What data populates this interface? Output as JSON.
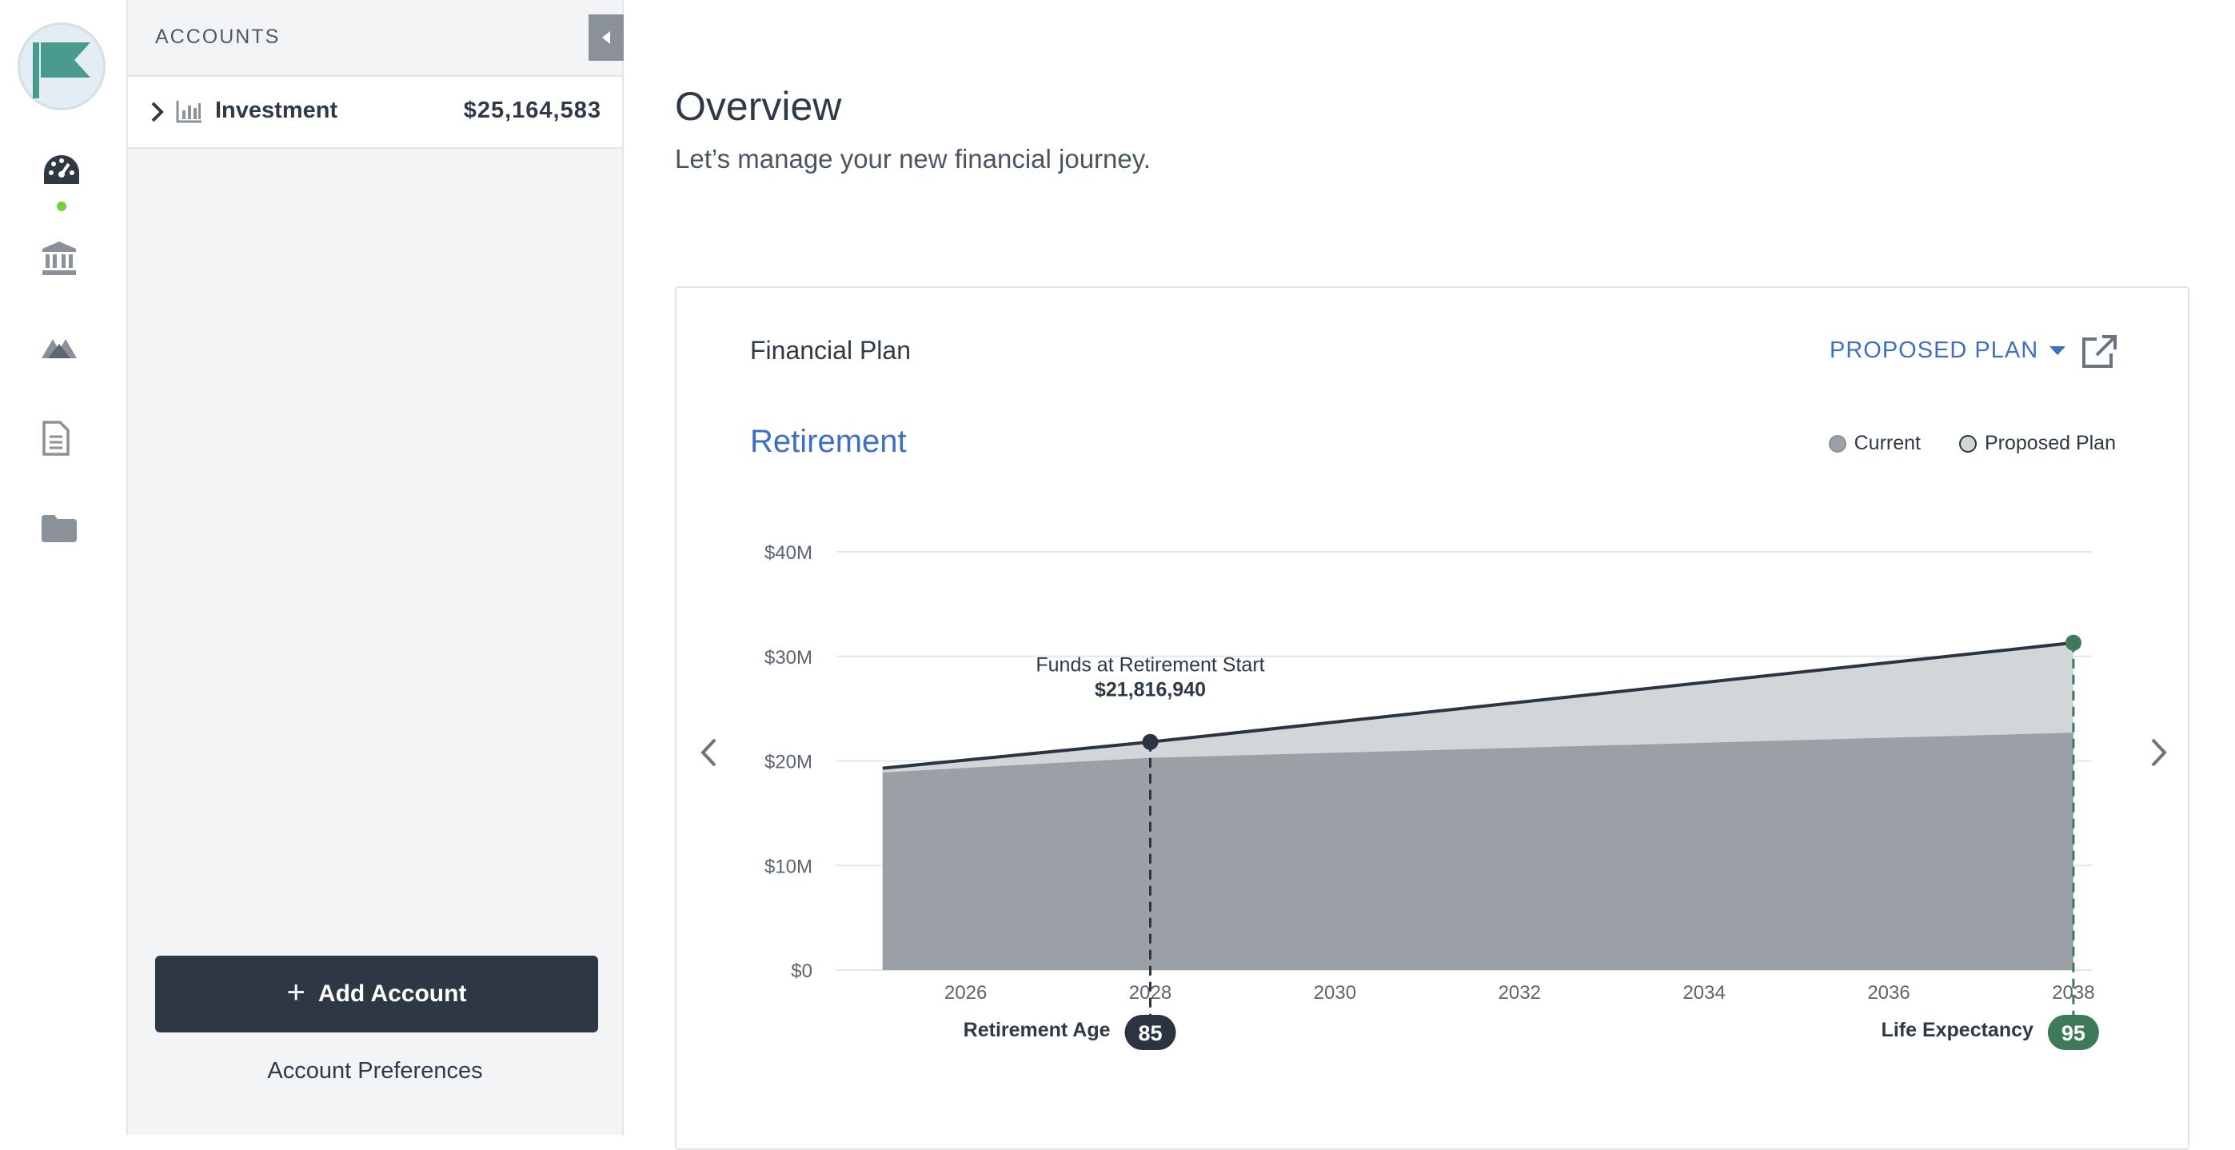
{
  "sidebar": {
    "nav_icons": [
      "flag-logo-icon",
      "dashboard-gauge-icon",
      "bank-icon",
      "mountain-icon",
      "document-icon",
      "folder-icon"
    ],
    "active_indicator_color": "#7ccc3c"
  },
  "accounts": {
    "header": "ACCOUNTS",
    "items": [
      {
        "name": "Investment",
        "value": "$25,164,583",
        "icon": "bar-chart-icon"
      }
    ],
    "add_label": "Add Account",
    "preferences_label": "Account Preferences"
  },
  "main": {
    "title": "Overview",
    "subtitle": "Let’s manage your new financial journey."
  },
  "card": {
    "title": "Financial Plan",
    "plan_selector": "PROPOSED PLAN",
    "section_title": "Retirement",
    "legend": [
      {
        "label": "Current",
        "color": "#9aa0a6"
      },
      {
        "label": "Proposed Plan",
        "color": "#d3d6d9"
      }
    ],
    "markers": {
      "retirement_label": "Retirement Age",
      "retirement_age": "85",
      "life_label": "Life Expectancy",
      "life_age": "95"
    },
    "annotation": {
      "title": "Funds at Retirement Start",
      "value": "$21,816,940"
    }
  },
  "chart_data": {
    "type": "area",
    "x": [
      2025.1,
      2028,
      2038
    ],
    "xticks": [
      "2026",
      "2028",
      "2030",
      "2032",
      "2034",
      "2036",
      "2038"
    ],
    "ytick_labels": [
      "$0",
      "$10M",
      "$20M",
      "$30M",
      "$40M"
    ],
    "ylim": [
      0,
      40000000
    ],
    "xlim": [
      2024.6,
      2038.2
    ],
    "grid": true,
    "legend_position": "top-right",
    "series": [
      {
        "name": "Current",
        "color": "#9aa0a6",
        "x": [
          2025.1,
          2028,
          2038
        ],
        "values": [
          18900000,
          20300000,
          22700000
        ]
      },
      {
        "name": "Proposed Plan",
        "color": "#d3d6d9",
        "line_color": "#2b3542",
        "x": [
          2025.1,
          2028,
          2038
        ],
        "values": [
          19300000,
          21816940,
          31300000
        ]
      }
    ]
  }
}
